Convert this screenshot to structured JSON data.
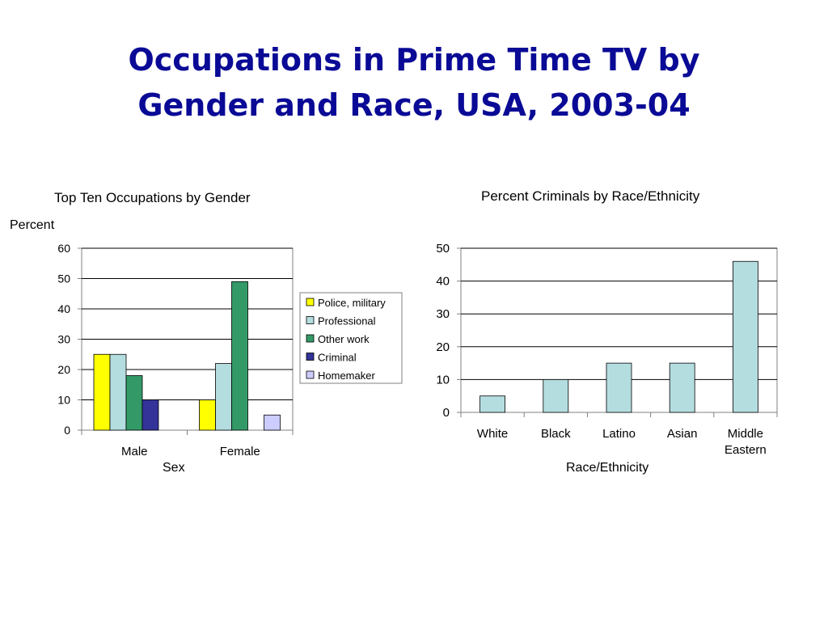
{
  "slide": {
    "title_line1": "Occupations in Prime Time TV by",
    "title_line2": "Gender and Race, USA, 2003-04"
  },
  "colors": {
    "title": "#0a0a96",
    "Police, military": "#ffff00",
    "Professional": "#b4dde0",
    "Other work": "#339966",
    "Criminal": "#333399",
    "Homemaker": "#ccccff",
    "race_bars": "#b4dde0"
  },
  "chart_data": [
    {
      "type": "bar",
      "title": "Top Ten Occupations by Gender",
      "ylabel": "Percent",
      "xlabel": "Sex",
      "categories": [
        "Male",
        "Female"
      ],
      "series": [
        {
          "name": "Police, military",
          "values": [
            25,
            10
          ]
        },
        {
          "name": "Professional",
          "values": [
            25,
            22
          ]
        },
        {
          "name": "Other work",
          "values": [
            18,
            49
          ]
        },
        {
          "name": "Criminal",
          "values": [
            10,
            0
          ]
        },
        {
          "name": "Homemaker",
          "values": [
            0,
            5
          ]
        }
      ],
      "ylim": [
        0,
        60
      ],
      "yticks": [
        0,
        10,
        20,
        30,
        40,
        50,
        60
      ],
      "grid": true,
      "legend": "right"
    },
    {
      "type": "bar",
      "title": "Percent Criminals by Race/Ethnicity",
      "xlabel": "Race/Ethnicity",
      "ylabel": "",
      "categories": [
        "White",
        "Black",
        "Latino",
        "Asian",
        "Middle Eastern"
      ],
      "values": [
        5,
        10,
        15,
        15,
        46
      ],
      "ylim": [
        0,
        50
      ],
      "yticks": [
        0,
        10,
        20,
        30,
        40,
        50
      ],
      "grid": true,
      "legend": "none"
    }
  ]
}
